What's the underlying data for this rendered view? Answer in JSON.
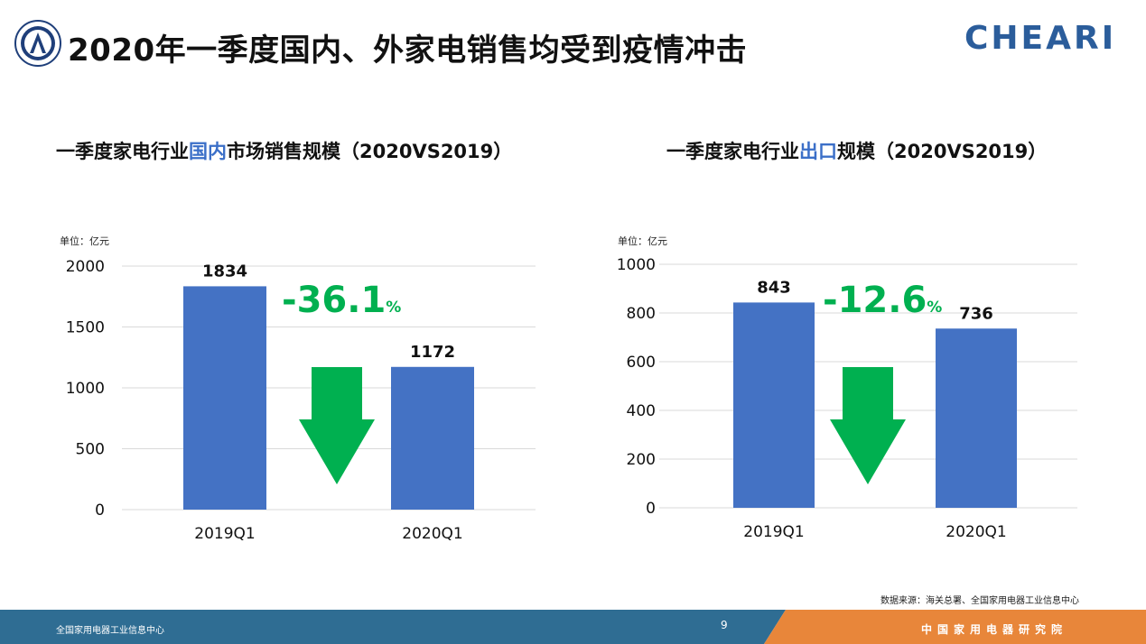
{
  "page_title": "2020年一季度国内、外家电销售均受到疫情冲击",
  "brand": "CHEARI",
  "charts": [
    {
      "title_before": "一季度家电行业",
      "title_highlight": "国内",
      "title_after": "市场销售规模（2020VS2019）",
      "unit": "单位：亿元",
      "change_value": "-36.1",
      "change_unit": "%"
    },
    {
      "title_before": "一季度家电行业",
      "title_highlight": "出口",
      "title_after": "规模（2020VS2019）",
      "unit": "单位：亿元",
      "change_value": "-12.6",
      "change_unit": "%"
    }
  ],
  "chart_data": [
    {
      "type": "bar",
      "title": "一季度家电行业国内市场销售规模（2020VS2019）",
      "categories": [
        "2019Q1",
        "2020Q1"
      ],
      "values": [
        1834,
        1172
      ],
      "data_labels": [
        "1834",
        "1172"
      ],
      "ylim": [
        0,
        2000
      ],
      "yticks": [
        0,
        500,
        1000,
        1500,
        2000
      ],
      "ylabel": "单位：亿元",
      "grid": true,
      "legend": "none",
      "bar_color": "#4472c4"
    },
    {
      "type": "bar",
      "title": "一季度家电行业出口规模（2020VS2019）",
      "categories": [
        "2019Q1",
        "2020Q1"
      ],
      "values": [
        843,
        736
      ],
      "data_labels": [
        "843",
        "736"
      ],
      "ylim": [
        0,
        1000
      ],
      "yticks": [
        0,
        200,
        400,
        600,
        800,
        1000
      ],
      "ylabel": "单位：亿元",
      "grid": true,
      "legend": "none",
      "bar_color": "#4472c4"
    }
  ],
  "colors": {
    "bar": "#4472c4",
    "down_arrow": "#00b050",
    "change_text": "#00b050",
    "highlight": "#3b6fc8",
    "footer_blue": "#2f6d93",
    "footer_orange": "#e8863a",
    "brand": "#2b5d9b"
  },
  "icons": {
    "down_arrow": "down-arrow-icon",
    "emblem": "emblem-logo"
  },
  "source": "数据来源：海关总署、全国家用电器工业信息中心",
  "footer": {
    "left_text": "全国家用电器工业信息中心",
    "page_number": "9",
    "right_text": "中国家用电器研究院"
  }
}
